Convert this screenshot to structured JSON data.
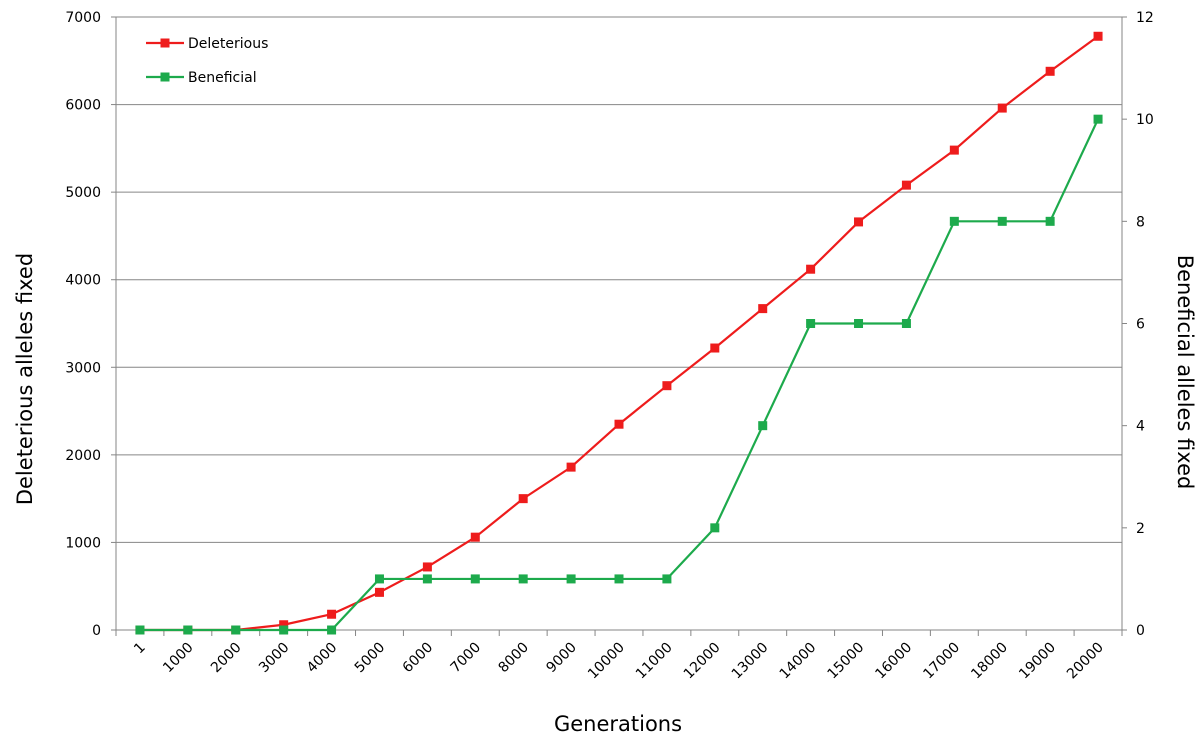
{
  "chart_data": {
    "type": "line",
    "title": "",
    "xlabel": "Generations",
    "ylabel": "Deleterious alleles fixed",
    "y2label": "Beneficial alleles fixed",
    "categories": [
      "1",
      "1000",
      "2000",
      "3000",
      "4000",
      "5000",
      "6000",
      "7000",
      "8000",
      "9000",
      "10000",
      "11000",
      "12000",
      "13000",
      "14000",
      "15000",
      "16000",
      "17000",
      "18000",
      "19000",
      "20000"
    ],
    "ylim": [
      0,
      7000
    ],
    "yticks": [
      "0",
      "1000",
      "2000",
      "3000",
      "4000",
      "5000",
      "6000",
      "7000"
    ],
    "y2lim": [
      0,
      12
    ],
    "y2ticks": [
      "0",
      "2",
      "4",
      "6",
      "8",
      "10",
      "12"
    ],
    "grid": true,
    "legend_position": "top-left",
    "series": [
      {
        "name": "Deleterious",
        "axis": "left",
        "color": "#ee1c1c",
        "values": [
          0,
          0,
          0,
          60,
          180,
          430,
          720,
          1060,
          1500,
          1860,
          2350,
          2790,
          3220,
          3670,
          4120,
          4660,
          5080,
          5480,
          5960,
          6380,
          6780
        ]
      },
      {
        "name": "Beneficial",
        "axis": "right",
        "color": "#1daa4c",
        "values": [
          0,
          0,
          0,
          0,
          0,
          1,
          1,
          1,
          1,
          1,
          1,
          1,
          2,
          4,
          6,
          6,
          6,
          8,
          8,
          8,
          10
        ]
      }
    ]
  }
}
